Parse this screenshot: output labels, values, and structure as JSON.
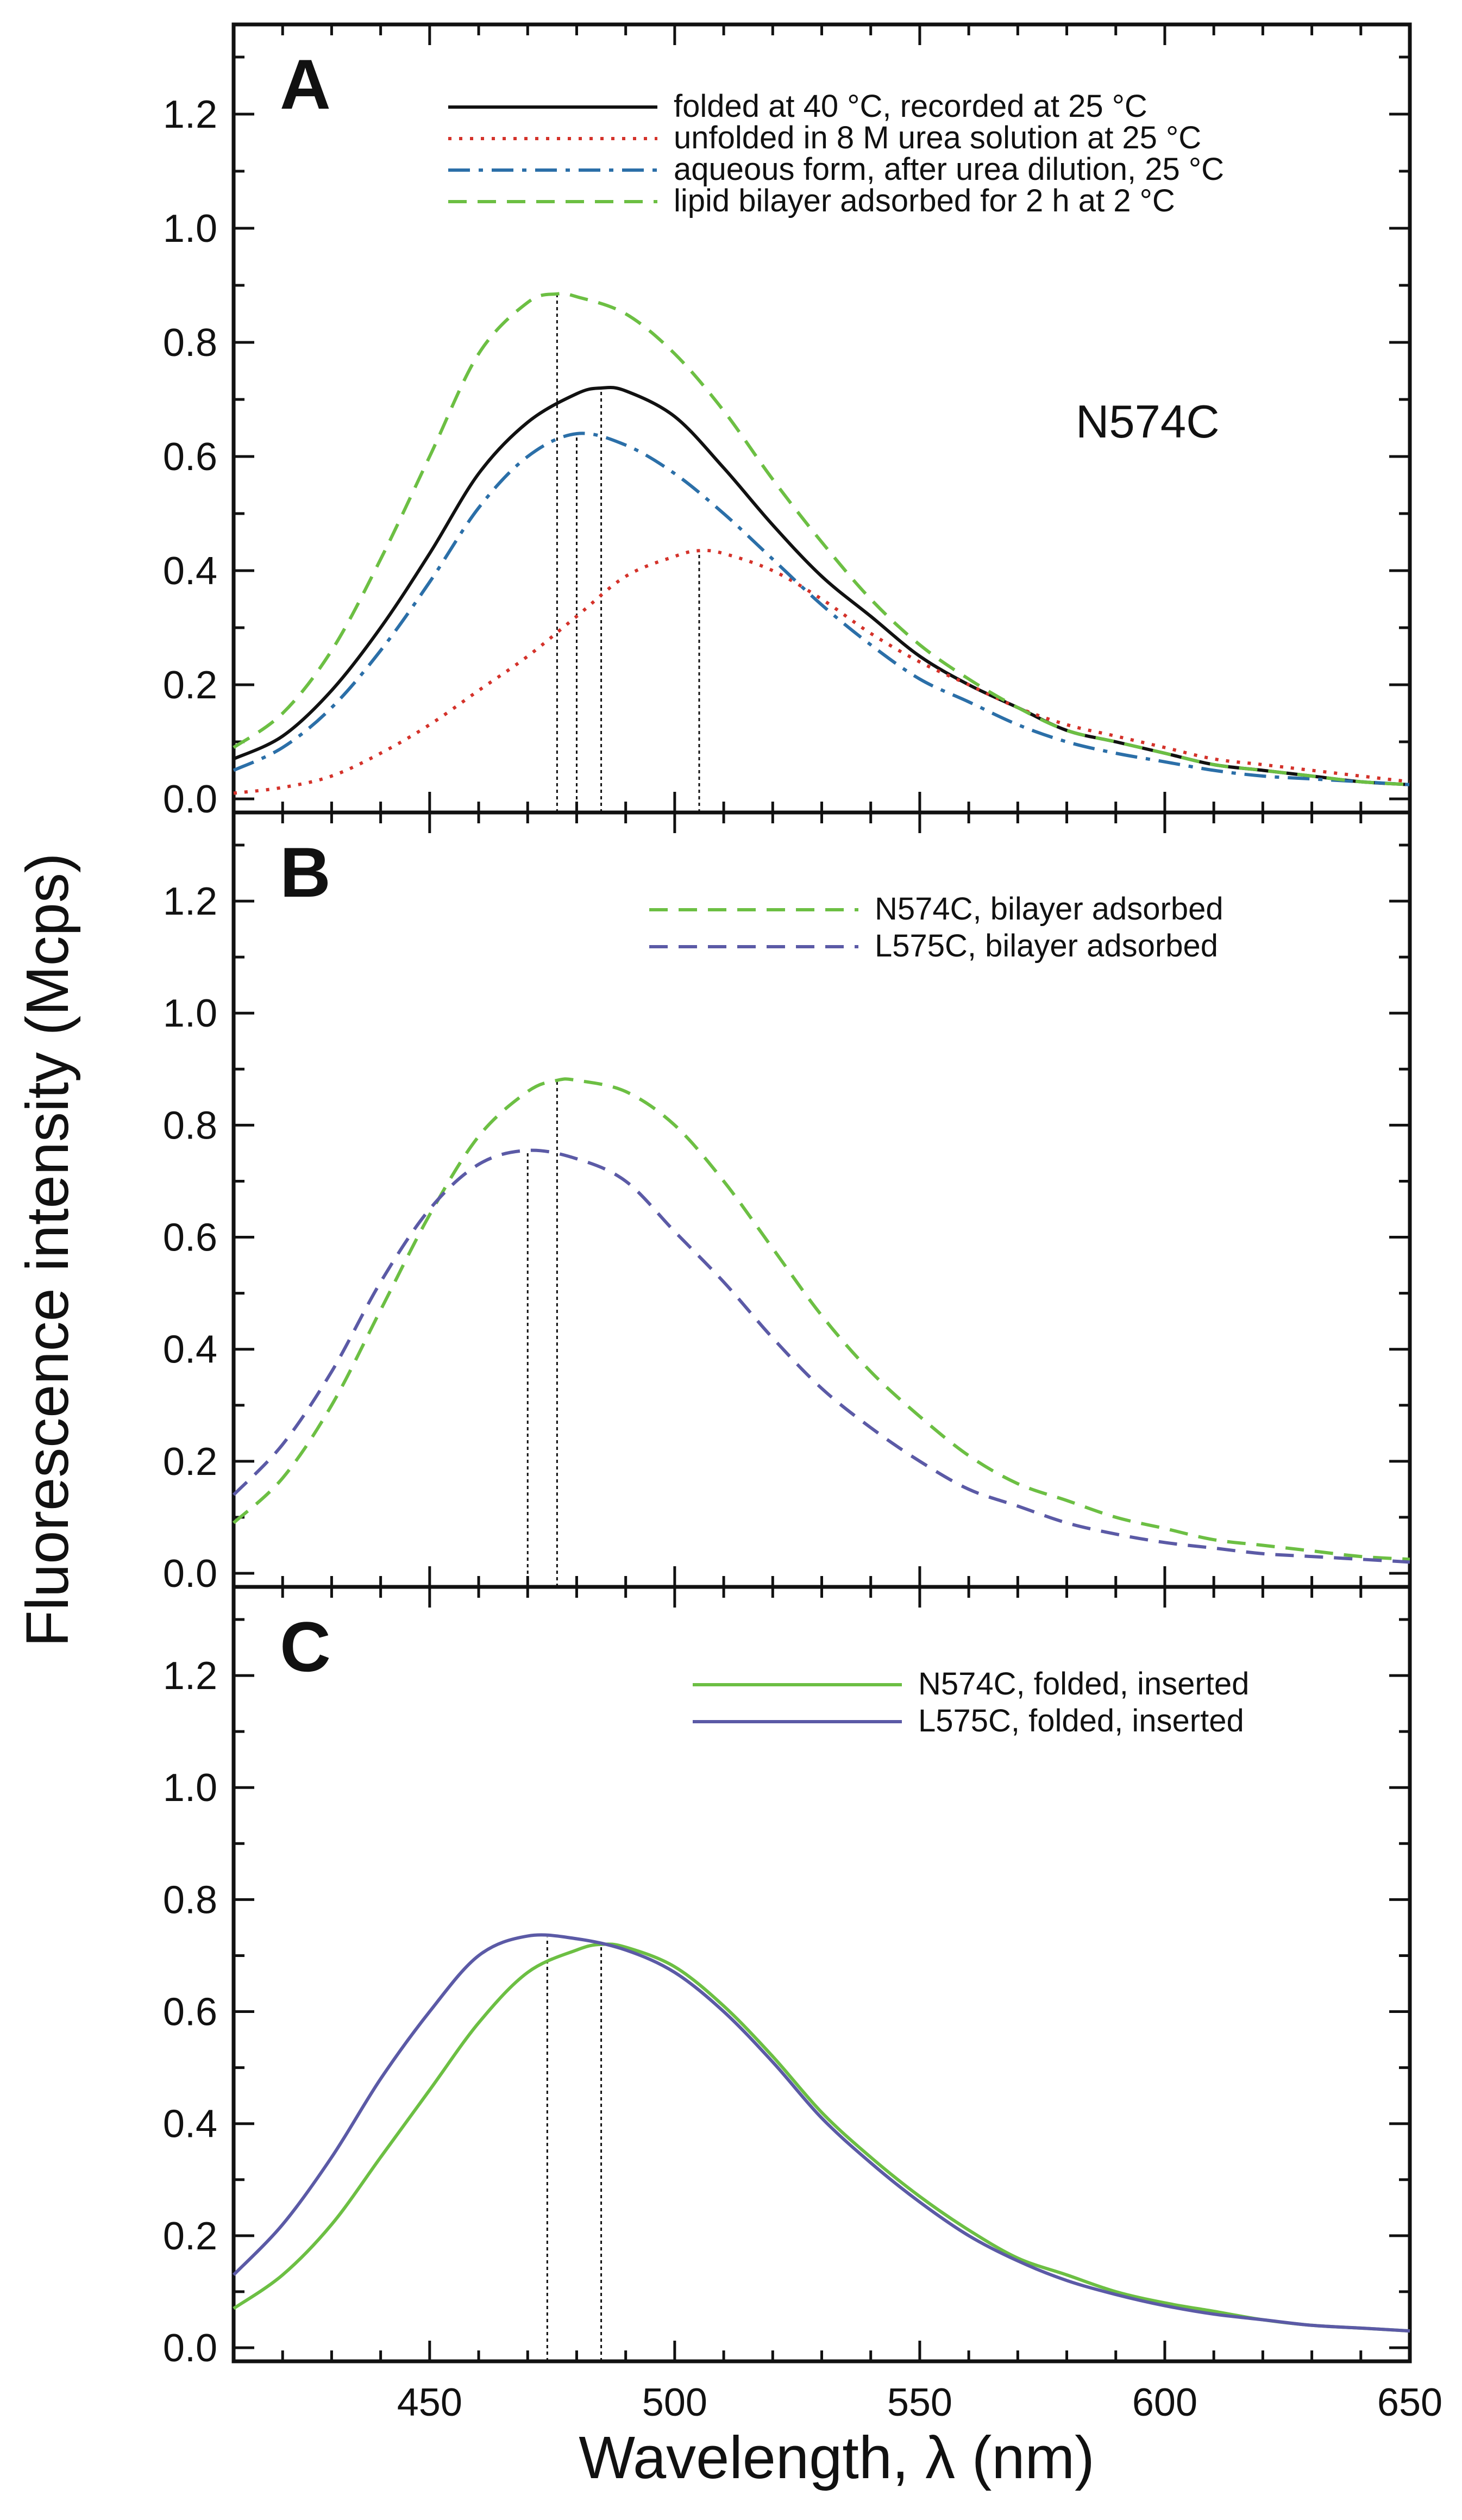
{
  "chart_data": {
    "type": "line",
    "ylabel": "Fluorescence intensity (Mcps)",
    "xlabel": "Wavelength,  λ (nm)",
    "xlim": [
      410,
      650
    ],
    "xticks": [
      450,
      500,
      550,
      600,
      650
    ],
    "ylim": [
      0,
      1.3
    ],
    "yticks": [
      0.0,
      0.2,
      0.4,
      0.6,
      0.8,
      1.0,
      1.2
    ],
    "panels": [
      {
        "label": "A",
        "annotation": "N574C",
        "series": [
          {
            "name": "folded at 40 °C, recorded at 25 °C",
            "color": "#111111",
            "style": "solid",
            "peak_x": 485,
            "points": [
              [
                410,
                0.07
              ],
              [
                420,
                0.11
              ],
              [
                430,
                0.19
              ],
              [
                440,
                0.3
              ],
              [
                450,
                0.43
              ],
              [
                460,
                0.57
              ],
              [
                470,
                0.66
              ],
              [
                480,
                0.71
              ],
              [
                485,
                0.72
              ],
              [
                490,
                0.715
              ],
              [
                500,
                0.67
              ],
              [
                510,
                0.58
              ],
              [
                520,
                0.48
              ],
              [
                530,
                0.39
              ],
              [
                540,
                0.32
              ],
              [
                550,
                0.25
              ],
              [
                560,
                0.2
              ],
              [
                570,
                0.16
              ],
              [
                580,
                0.12
              ],
              [
                590,
                0.1
              ],
              [
                600,
                0.08
              ],
              [
                610,
                0.06
              ],
              [
                620,
                0.05
              ],
              [
                630,
                0.04
              ],
              [
                640,
                0.03
              ],
              [
                650,
                0.025
              ]
            ]
          },
          {
            "name": "unfolded in 8 M urea solution at 25 °C",
            "color": "#d4322a",
            "style": "dotted",
            "peak_x": 505,
            "points": [
              [
                410,
                0.01
              ],
              [
                420,
                0.02
              ],
              [
                430,
                0.04
              ],
              [
                440,
                0.08
              ],
              [
                450,
                0.13
              ],
              [
                460,
                0.19
              ],
              [
                470,
                0.25
              ],
              [
                480,
                0.32
              ],
              [
                490,
                0.39
              ],
              [
                500,
                0.425
              ],
              [
                505,
                0.435
              ],
              [
                510,
                0.43
              ],
              [
                520,
                0.4
              ],
              [
                530,
                0.35
              ],
              [
                540,
                0.29
              ],
              [
                550,
                0.24
              ],
              [
                560,
                0.2
              ],
              [
                570,
                0.16
              ],
              [
                580,
                0.13
              ],
              [
                590,
                0.11
              ],
              [
                600,
                0.09
              ],
              [
                610,
                0.07
              ],
              [
                620,
                0.06
              ],
              [
                630,
                0.05
              ],
              [
                640,
                0.04
              ],
              [
                650,
                0.03
              ]
            ]
          },
          {
            "name": "aqueous form, after urea dilution,  25 °C",
            "color": "#2b6fa8",
            "style": "dashdot",
            "peak_x": 480,
            "points": [
              [
                410,
                0.05
              ],
              [
                420,
                0.09
              ],
              [
                430,
                0.16
              ],
              [
                440,
                0.26
              ],
              [
                450,
                0.38
              ],
              [
                460,
                0.51
              ],
              [
                470,
                0.6
              ],
              [
                480,
                0.64
              ],
              [
                490,
                0.62
              ],
              [
                500,
                0.57
              ],
              [
                510,
                0.5
              ],
              [
                520,
                0.42
              ],
              [
                530,
                0.34
              ],
              [
                540,
                0.27
              ],
              [
                550,
                0.21
              ],
              [
                560,
                0.17
              ],
              [
                570,
                0.13
              ],
              [
                580,
                0.1
              ],
              [
                590,
                0.08
              ],
              [
                600,
                0.065
              ],
              [
                610,
                0.05
              ],
              [
                620,
                0.04
              ],
              [
                630,
                0.035
              ],
              [
                640,
                0.03
              ],
              [
                650,
                0.025
              ]
            ]
          },
          {
            "name": "lipid bilayer adsorbed for 2 h at 2 °C",
            "color": "#6cbf43",
            "style": "dashed",
            "peak_x": 476,
            "points": [
              [
                410,
                0.09
              ],
              [
                420,
                0.15
              ],
              [
                430,
                0.26
              ],
              [
                440,
                0.42
              ],
              [
                450,
                0.6
              ],
              [
                460,
                0.78
              ],
              [
                470,
                0.87
              ],
              [
                476,
                0.885
              ],
              [
                480,
                0.88
              ],
              [
                490,
                0.85
              ],
              [
                500,
                0.78
              ],
              [
                510,
                0.68
              ],
              [
                520,
                0.56
              ],
              [
                530,
                0.45
              ],
              [
                540,
                0.35
              ],
              [
                550,
                0.27
              ],
              [
                560,
                0.21
              ],
              [
                570,
                0.16
              ],
              [
                580,
                0.12
              ],
              [
                590,
                0.1
              ],
              [
                600,
                0.08
              ],
              [
                610,
                0.06
              ],
              [
                620,
                0.05
              ],
              [
                630,
                0.04
              ],
              [
                640,
                0.03
              ],
              [
                650,
                0.025
              ]
            ]
          }
        ]
      },
      {
        "label": "B",
        "series": [
          {
            "name": "N574C, bilayer adsorbed",
            "color": "#6cbf43",
            "style": "dashed",
            "peak_x": 476,
            "points": [
              [
                410,
                0.09
              ],
              [
                420,
                0.17
              ],
              [
                430,
                0.3
              ],
              [
                440,
                0.47
              ],
              [
                450,
                0.64
              ],
              [
                460,
                0.78
              ],
              [
                470,
                0.86
              ],
              [
                476,
                0.88
              ],
              [
                480,
                0.88
              ],
              [
                490,
                0.86
              ],
              [
                500,
                0.8
              ],
              [
                510,
                0.7
              ],
              [
                520,
                0.58
              ],
              [
                530,
                0.46
              ],
              [
                540,
                0.36
              ],
              [
                550,
                0.28
              ],
              [
                560,
                0.21
              ],
              [
                570,
                0.16
              ],
              [
                580,
                0.13
              ],
              [
                590,
                0.1
              ],
              [
                600,
                0.08
              ],
              [
                610,
                0.06
              ],
              [
                620,
                0.05
              ],
              [
                630,
                0.04
              ],
              [
                640,
                0.03
              ],
              [
                650,
                0.025
              ]
            ]
          },
          {
            "name": "L575C, bilayer adsorbed",
            "color": "#5b5aa6",
            "style": "dashed",
            "peak_x": 470,
            "points": [
              [
                410,
                0.14
              ],
              [
                420,
                0.23
              ],
              [
                430,
                0.36
              ],
              [
                440,
                0.52
              ],
              [
                450,
                0.65
              ],
              [
                460,
                0.73
              ],
              [
                470,
                0.755
              ],
              [
                480,
                0.74
              ],
              [
                490,
                0.7
              ],
              [
                500,
                0.61
              ],
              [
                510,
                0.52
              ],
              [
                520,
                0.42
              ],
              [
                530,
                0.33
              ],
              [
                540,
                0.26
              ],
              [
                550,
                0.2
              ],
              [
                560,
                0.15
              ],
              [
                570,
                0.12
              ],
              [
                580,
                0.09
              ],
              [
                590,
                0.07
              ],
              [
                600,
                0.055
              ],
              [
                610,
                0.045
              ],
              [
                620,
                0.035
              ],
              [
                630,
                0.03
              ],
              [
                640,
                0.025
              ],
              [
                650,
                0.02
              ]
            ]
          }
        ]
      },
      {
        "label": "C",
        "series": [
          {
            "name": "N574C, folded, inserted",
            "color": "#6cbf43",
            "style": "solid",
            "peak_x": 485,
            "points": [
              [
                410,
                0.07
              ],
              [
                420,
                0.13
              ],
              [
                430,
                0.22
              ],
              [
                440,
                0.34
              ],
              [
                450,
                0.46
              ],
              [
                460,
                0.58
              ],
              [
                470,
                0.67
              ],
              [
                480,
                0.71
              ],
              [
                485,
                0.72
              ],
              [
                490,
                0.715
              ],
              [
                500,
                0.68
              ],
              [
                510,
                0.61
              ],
              [
                520,
                0.52
              ],
              [
                530,
                0.42
              ],
              [
                540,
                0.34
              ],
              [
                550,
                0.27
              ],
              [
                560,
                0.21
              ],
              [
                570,
                0.16
              ],
              [
                580,
                0.13
              ],
              [
                590,
                0.1
              ],
              [
                600,
                0.08
              ],
              [
                610,
                0.065
              ],
              [
                620,
                0.05
              ],
              [
                630,
                0.04
              ],
              [
                640,
                0.035
              ],
              [
                650,
                0.03
              ]
            ]
          },
          {
            "name": "L575C, folded, inserted",
            "color": "#5b5aa6",
            "style": "solid",
            "peak_x": 474,
            "points": [
              [
                410,
                0.13
              ],
              [
                420,
                0.22
              ],
              [
                430,
                0.34
              ],
              [
                440,
                0.48
              ],
              [
                450,
                0.6
              ],
              [
                460,
                0.7
              ],
              [
                470,
                0.735
              ],
              [
                480,
                0.73
              ],
              [
                490,
                0.71
              ],
              [
                500,
                0.67
              ],
              [
                510,
                0.6
              ],
              [
                520,
                0.51
              ],
              [
                530,
                0.41
              ],
              [
                540,
                0.33
              ],
              [
                550,
                0.26
              ],
              [
                560,
                0.2
              ],
              [
                570,
                0.155
              ],
              [
                580,
                0.12
              ],
              [
                590,
                0.095
              ],
              [
                600,
                0.075
              ],
              [
                610,
                0.06
              ],
              [
                620,
                0.05
              ],
              [
                630,
                0.04
              ],
              [
                640,
                0.035
              ],
              [
                650,
                0.03
              ]
            ]
          }
        ]
      }
    ]
  }
}
